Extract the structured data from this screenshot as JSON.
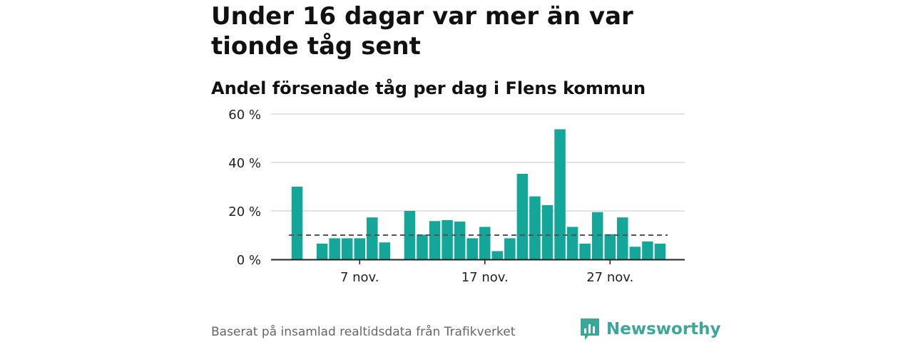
{
  "title": "Under 16 dagar var mer än var tionde tåg sent",
  "subtitle": "Andel försenade tåg per dag i Flens kommun",
  "footer": {
    "source": "Baserat på insamlad realtidsdata från Trafikverket",
    "brand": "Newsworthy"
  },
  "colors": {
    "bar": "#14a698",
    "reference_line": "#555555",
    "grid": "#d9d9d9",
    "axis": "#222222",
    "brand": "#3aa79a"
  },
  "chart_data": {
    "type": "bar",
    "title": "Andel försenade tåg per dag i Flens kommun",
    "xlabel": "",
    "ylabel": "",
    "x_start": "2 nov.",
    "categories": [
      "2 nov.",
      "3 nov.",
      "4 nov.",
      "5 nov.",
      "6 nov.",
      "7 nov.",
      "8 nov.",
      "9 nov.",
      "10 nov.",
      "11 nov.",
      "12 nov.",
      "13 nov.",
      "14 nov.",
      "15 nov.",
      "16 nov.",
      "17 nov.",
      "18 nov.",
      "19 nov.",
      "20 nov.",
      "21 nov.",
      "22 nov.",
      "23 nov.",
      "24 nov.",
      "25 nov.",
      "26 nov.",
      "27 nov.",
      "28 nov.",
      "29 nov.",
      "30 nov.",
      "1 dec."
    ],
    "values": [
      30,
      null,
      6.5,
      8.7,
      8.7,
      8.7,
      17.3,
      7,
      null,
      20,
      10.2,
      15.8,
      16.2,
      15.6,
      8.7,
      13.4,
      3.4,
      8.7,
      35.3,
      26,
      22.4,
      53.7,
      13.4,
      6.5,
      19.5,
      10.4,
      17.3,
      5.2,
      7.4,
      6.5
    ],
    "reference_line": {
      "value": 10,
      "style": "dashed"
    },
    "ylim": [
      0,
      60
    ],
    "yticks": [
      0,
      20,
      40,
      60
    ],
    "ytick_labels": [
      "0 %",
      "20 %",
      "40 %",
      "60 %"
    ],
    "xticks": [
      {
        "category": "7 nov.",
        "label": "7 nov."
      },
      {
        "category": "17 nov.",
        "label": "17 nov."
      },
      {
        "category": "27 nov.",
        "label": "27 nov."
      }
    ],
    "grid": true
  }
}
